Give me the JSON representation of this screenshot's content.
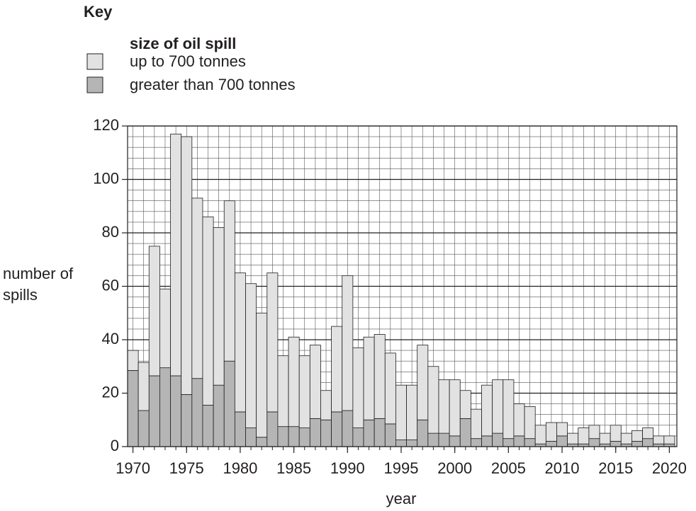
{
  "chart_data": {
    "type": "stacked_bar",
    "key_title": "Key",
    "legend_title": "size of oil spill",
    "x_label": "year",
    "y_label": "number of spills",
    "x": [
      1970,
      1971,
      1972,
      1973,
      1974,
      1975,
      1976,
      1977,
      1978,
      1979,
      1980,
      1981,
      1982,
      1983,
      1984,
      1985,
      1986,
      1987,
      1988,
      1989,
      1990,
      1991,
      1992,
      1993,
      1994,
      1995,
      1996,
      1997,
      1998,
      1999,
      2000,
      2001,
      2002,
      2003,
      2004,
      2005,
      2006,
      2007,
      2008,
      2009,
      2010,
      2011,
      2012,
      2013,
      2014,
      2015,
      2016,
      2017,
      2018,
      2019,
      2020
    ],
    "series": [
      {
        "name": "up to 700 tonnes",
        "color": "#e2e2e2",
        "values": [
          7.5,
          18,
          48.5,
          29.5,
          90.5,
          96.5,
          67.5,
          70.5,
          59,
          60,
          52,
          54,
          46.5,
          52,
          26.5,
          33.5,
          27,
          27.5,
          11,
          32,
          50.5,
          30,
          31,
          31.5,
          26.5,
          20.5,
          20.5,
          28,
          25,
          20,
          21,
          10.5,
          11,
          19,
          20,
          22,
          12,
          12,
          7,
          7,
          5,
          4,
          6,
          5,
          4,
          6,
          4,
          4,
          4,
          3,
          3
        ]
      },
      {
        "name": "greater than 700 tonnes",
        "color": "#b5b5b5",
        "values": [
          28.5,
          13.5,
          26.5,
          29.5,
          26.5,
          19.5,
          25.5,
          15.5,
          23,
          32,
          13,
          7,
          3.5,
          13,
          7.5,
          7.5,
          7,
          10.5,
          10,
          13,
          13.5,
          7,
          10,
          10.5,
          8.5,
          2.5,
          2.5,
          10,
          5,
          5,
          4,
          10.5,
          3,
          4,
          5,
          3,
          4,
          3,
          1,
          2,
          4,
          1,
          1,
          3,
          1,
          2,
          1,
          2,
          3,
          1,
          1
        ]
      }
    ],
    "stack_order": "bottom_last_series",
    "xlim": [
      1969.5,
      2020.7
    ],
    "xticks": [
      1970,
      1975,
      1980,
      1985,
      1990,
      1995,
      2000,
      2005,
      2010,
      2015,
      2020
    ],
    "ylim": [
      0,
      120
    ],
    "yticks": [
      0,
      20,
      40,
      60,
      80,
      100,
      120
    ],
    "grid": true
  }
}
